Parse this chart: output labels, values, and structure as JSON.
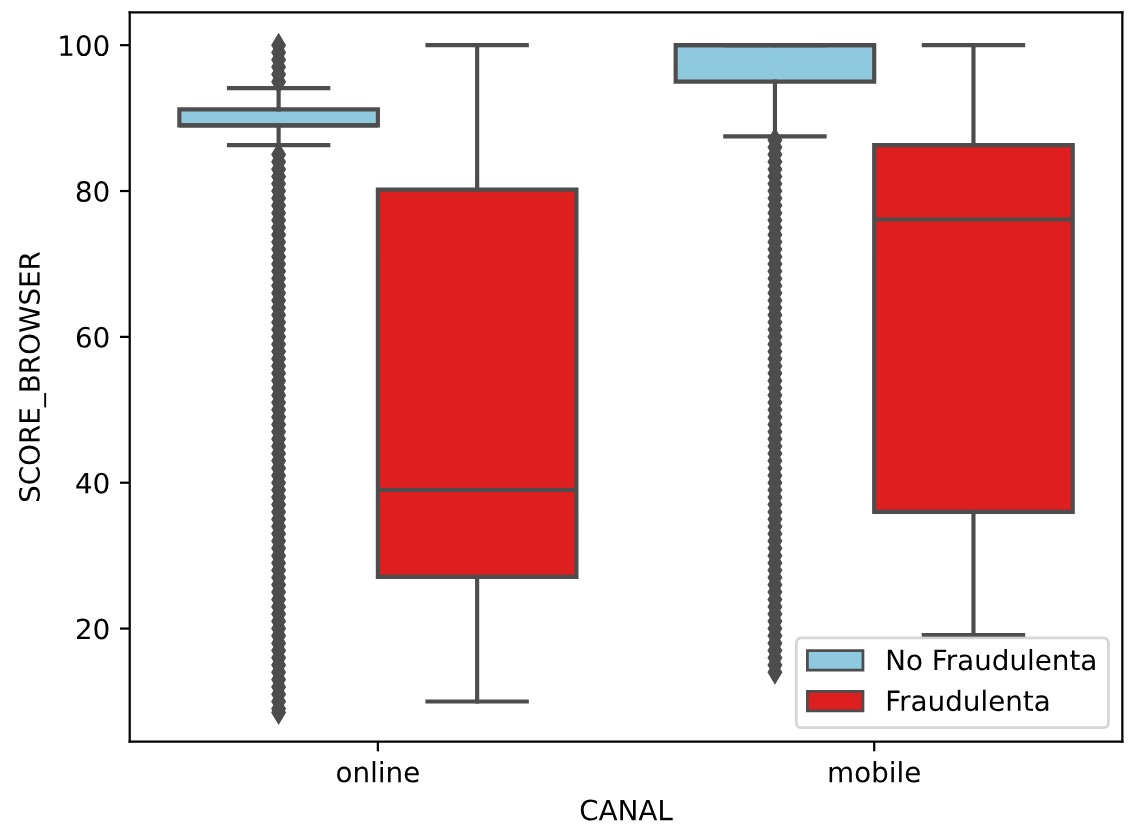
{
  "chart_data": {
    "type": "box",
    "xlabel": "CANAL",
    "ylabel": "SCORE_BROWSER",
    "categories": [
      "online",
      "mobile"
    ],
    "ylim": [
      4.5,
      104.5
    ],
    "yticks": [
      20,
      40,
      60,
      80,
      100
    ],
    "grid": false,
    "legend": "bottom right",
    "marker": "diamond",
    "series": [
      {
        "name": "No Fraudulenta",
        "color": "#8fc9e0",
        "boxes": [
          {
            "low": 86.3,
            "q1": 89,
            "median": 89,
            "q3": 91.2,
            "high": 94.1,
            "outliers": [
              95,
              96,
              97,
              98,
              99,
              100,
              8.5,
              9,
              10,
              11,
              12,
              13,
              14,
              15,
              16,
              17,
              18,
              19,
              20,
              21,
              22,
              23,
              24,
              25,
              26,
              27,
              28,
              29,
              30,
              31,
              32,
              33,
              34,
              35,
              36,
              37,
              38,
              39,
              40,
              41,
              42,
              43,
              44,
              45,
              46,
              47,
              48,
              49,
              50,
              51,
              52,
              53,
              54,
              55,
              56,
              57,
              58,
              59,
              60,
              61,
              62,
              63,
              64,
              65,
              66,
              67,
              68,
              69,
              70,
              71,
              72,
              73,
              74,
              75,
              76,
              77,
              78,
              79,
              80,
              81,
              82,
              83,
              84,
              85
            ]
          },
          {
            "low": 87.5,
            "q1": 95,
            "median": 100,
            "q3": 100,
            "high": 100,
            "outliers": [
              14,
              15,
              16,
              17,
              18,
              19,
              20,
              21,
              22,
              23,
              24,
              25,
              26,
              27,
              28,
              29,
              30,
              31,
              32,
              33,
              34,
              35,
              36,
              37,
              38,
              39,
              40,
              41,
              42,
              43,
              44,
              45,
              46,
              47,
              48,
              49,
              50,
              51,
              52,
              53,
              54,
              55,
              56,
              57,
              58,
              59,
              60,
              61,
              62,
              63,
              64,
              65,
              66,
              67,
              68,
              69,
              70,
              71,
              72,
              73,
              74,
              75,
              76,
              77,
              78,
              79,
              80,
              81,
              82,
              83,
              84,
              85,
              86,
              87
            ]
          }
        ]
      },
      {
        "name": "Fraudulenta",
        "color": "#dd1f1f",
        "boxes": [
          {
            "low": 10,
            "q1": 27.1,
            "median": 39,
            "q3": 80.2,
            "high": 100
          },
          {
            "low": 19.1,
            "q1": 36,
            "median": 76.1,
            "q3": 86.3,
            "high": 100
          }
        ]
      }
    ]
  }
}
